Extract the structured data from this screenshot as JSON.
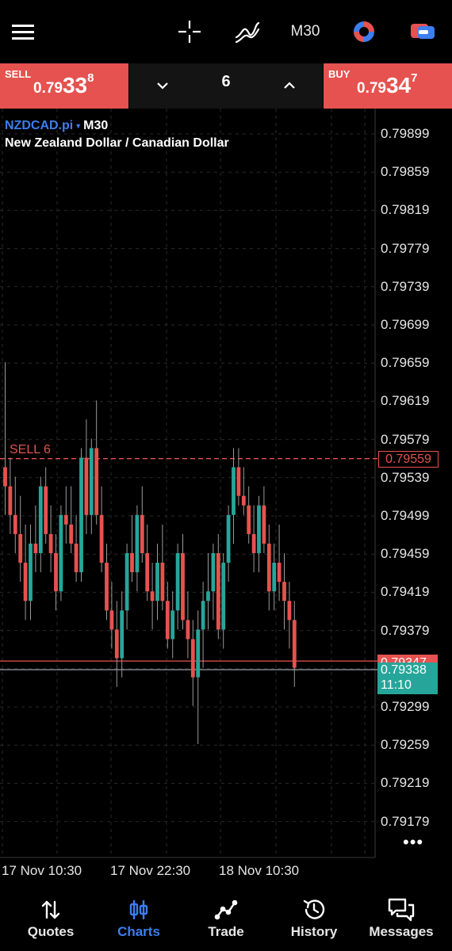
{
  "toolbar": {
    "menu_icon": "hamburger-icon",
    "crosshair_icon": "crosshair-icon",
    "indicators_icon": "indicators-icon",
    "timeframe": "M30",
    "objects_icon": "objects-icon",
    "trade_mode_icon": "one-click-trading-icon"
  },
  "trade": {
    "sell_label": "SELL",
    "sell_price_small": "0.79",
    "sell_price_big": "33",
    "sell_price_sup": "8",
    "volume": "6",
    "buy_label": "BUY",
    "buy_price_small": "0.79",
    "buy_price_big": "34",
    "buy_price_sup": "7"
  },
  "symbol": {
    "ticker": "NZDCAD.pi",
    "dropdown_arrow": "▼",
    "timeframe": "M30",
    "description": "New Zealand Dollar / Canadian Dollar"
  },
  "overlays": {
    "position_label": "SELL 6",
    "position_price": "0.79559",
    "ask_price": "0.79347",
    "bid_price": "0.79338",
    "countdown": "11:10",
    "more_icon": "•••"
  },
  "colors": {
    "bull": "#26a69a",
    "bear": "#e6524f",
    "accent": "#3d7ef0",
    "grid": "#2a2a2a"
  },
  "chart_data": {
    "type": "candlestick",
    "symbol": "NZDCAD.pi",
    "timeframe": "M30",
    "y_ticks": [
      "0.79899",
      "0.79859",
      "0.79819",
      "0.79779",
      "0.79739",
      "0.79699",
      "0.79659",
      "0.79619",
      "0.79579",
      "0.79539",
      "0.79499",
      "0.79459",
      "0.79419",
      "0.79379",
      "0.79299",
      "0.79259",
      "0.79219",
      "0.79179"
    ],
    "x_ticks": [
      "17 Nov 10:30",
      "17 Nov 22:30",
      "18 Nov 10:30"
    ],
    "ylim": [
      0.7915,
      0.7993
    ],
    "grid": true,
    "horizontal_lines": [
      {
        "label": "SELL 6",
        "value": 0.79559,
        "style": "dashed"
      },
      {
        "label": "ask",
        "value": 0.79347,
        "style": "solid"
      },
      {
        "label": "bid",
        "value": 0.79338,
        "style": "solid"
      }
    ],
    "candles": [
      [
        0.7955,
        0.7966,
        0.795,
        0.7953
      ],
      [
        0.7953,
        0.7956,
        0.7948,
        0.795
      ],
      [
        0.795,
        0.7954,
        0.7946,
        0.7948
      ],
      [
        0.7948,
        0.7952,
        0.7943,
        0.7945
      ],
      [
        0.7945,
        0.7949,
        0.7939,
        0.7941
      ],
      [
        0.7941,
        0.7949,
        0.7939,
        0.7947
      ],
      [
        0.7947,
        0.7951,
        0.7944,
        0.7946
      ],
      [
        0.7946,
        0.7954,
        0.7944,
        0.7953
      ],
      [
        0.7953,
        0.7955,
        0.7947,
        0.7948
      ],
      [
        0.7948,
        0.7951,
        0.7944,
        0.7946
      ],
      [
        0.7946,
        0.7948,
        0.794,
        0.7942
      ],
      [
        0.7942,
        0.7951,
        0.7941,
        0.795
      ],
      [
        0.795,
        0.7953,
        0.7947,
        0.7949
      ],
      [
        0.7949,
        0.7953,
        0.7946,
        0.7947
      ],
      [
        0.7947,
        0.795,
        0.7943,
        0.7944
      ],
      [
        0.7944,
        0.7957,
        0.7943,
        0.7956
      ],
      [
        0.7956,
        0.796,
        0.7948,
        0.795
      ],
      [
        0.795,
        0.7958,
        0.7948,
        0.7957
      ],
      [
        0.7957,
        0.7962,
        0.7949,
        0.795
      ],
      [
        0.795,
        0.7953,
        0.7944,
        0.7945
      ],
      [
        0.7945,
        0.7947,
        0.7939,
        0.794
      ],
      [
        0.794,
        0.7943,
        0.7936,
        0.7938
      ],
      [
        0.7938,
        0.7941,
        0.7932,
        0.7935
      ],
      [
        0.7935,
        0.7942,
        0.7933,
        0.794
      ],
      [
        0.794,
        0.7947,
        0.7938,
        0.7946
      ],
      [
        0.7946,
        0.795,
        0.7943,
        0.7944
      ],
      [
        0.7944,
        0.7951,
        0.7942,
        0.795
      ],
      [
        0.795,
        0.7953,
        0.7945,
        0.7946
      ],
      [
        0.7946,
        0.7949,
        0.7941,
        0.7942
      ],
      [
        0.7942,
        0.7945,
        0.7938,
        0.7941
      ],
      [
        0.7941,
        0.7947,
        0.7939,
        0.7945
      ],
      [
        0.7945,
        0.7949,
        0.794,
        0.7941
      ],
      [
        0.7941,
        0.7943,
        0.7936,
        0.7937
      ],
      [
        0.7937,
        0.7942,
        0.7935,
        0.794
      ],
      [
        0.794,
        0.7947,
        0.7938,
        0.7946
      ],
      [
        0.7946,
        0.7948,
        0.7938,
        0.7939
      ],
      [
        0.7939,
        0.7942,
        0.7935,
        0.7937
      ],
      [
        0.7937,
        0.7939,
        0.793,
        0.7933
      ],
      [
        0.7933,
        0.794,
        0.7926,
        0.7938
      ],
      [
        0.7938,
        0.7943,
        0.7934,
        0.7941
      ],
      [
        0.7941,
        0.7946,
        0.7938,
        0.7942
      ],
      [
        0.7942,
        0.7947,
        0.7939,
        0.7946
      ],
      [
        0.7946,
        0.7948,
        0.7937,
        0.7938
      ],
      [
        0.7938,
        0.7946,
        0.7936,
        0.7945
      ],
      [
        0.7945,
        0.7951,
        0.7943,
        0.795
      ],
      [
        0.795,
        0.7957,
        0.7947,
        0.7955
      ],
      [
        0.7955,
        0.7957,
        0.7951,
        0.7952
      ],
      [
        0.7952,
        0.7955,
        0.795,
        0.7951
      ],
      [
        0.7951,
        0.7953,
        0.7947,
        0.7948
      ],
      [
        0.7948,
        0.7951,
        0.7944,
        0.7946
      ],
      [
        0.7946,
        0.7952,
        0.7944,
        0.7951
      ],
      [
        0.7951,
        0.7953,
        0.7946,
        0.7947
      ],
      [
        0.7947,
        0.7949,
        0.794,
        0.7942
      ],
      [
        0.7942,
        0.7947,
        0.794,
        0.7945
      ],
      [
        0.7945,
        0.7949,
        0.7941,
        0.7943
      ],
      [
        0.7943,
        0.7946,
        0.7938,
        0.7941
      ],
      [
        0.7941,
        0.7943,
        0.7936,
        0.7939
      ],
      [
        0.7939,
        0.7941,
        0.7932,
        0.7934
      ]
    ]
  },
  "nav": [
    {
      "label": "Quotes",
      "icon": "quotes-icon"
    },
    {
      "label": "Charts",
      "icon": "charts-icon"
    },
    {
      "label": "Trade",
      "icon": "trade-icon"
    },
    {
      "label": "History",
      "icon": "history-icon"
    },
    {
      "label": "Messages",
      "icon": "messages-icon"
    }
  ]
}
